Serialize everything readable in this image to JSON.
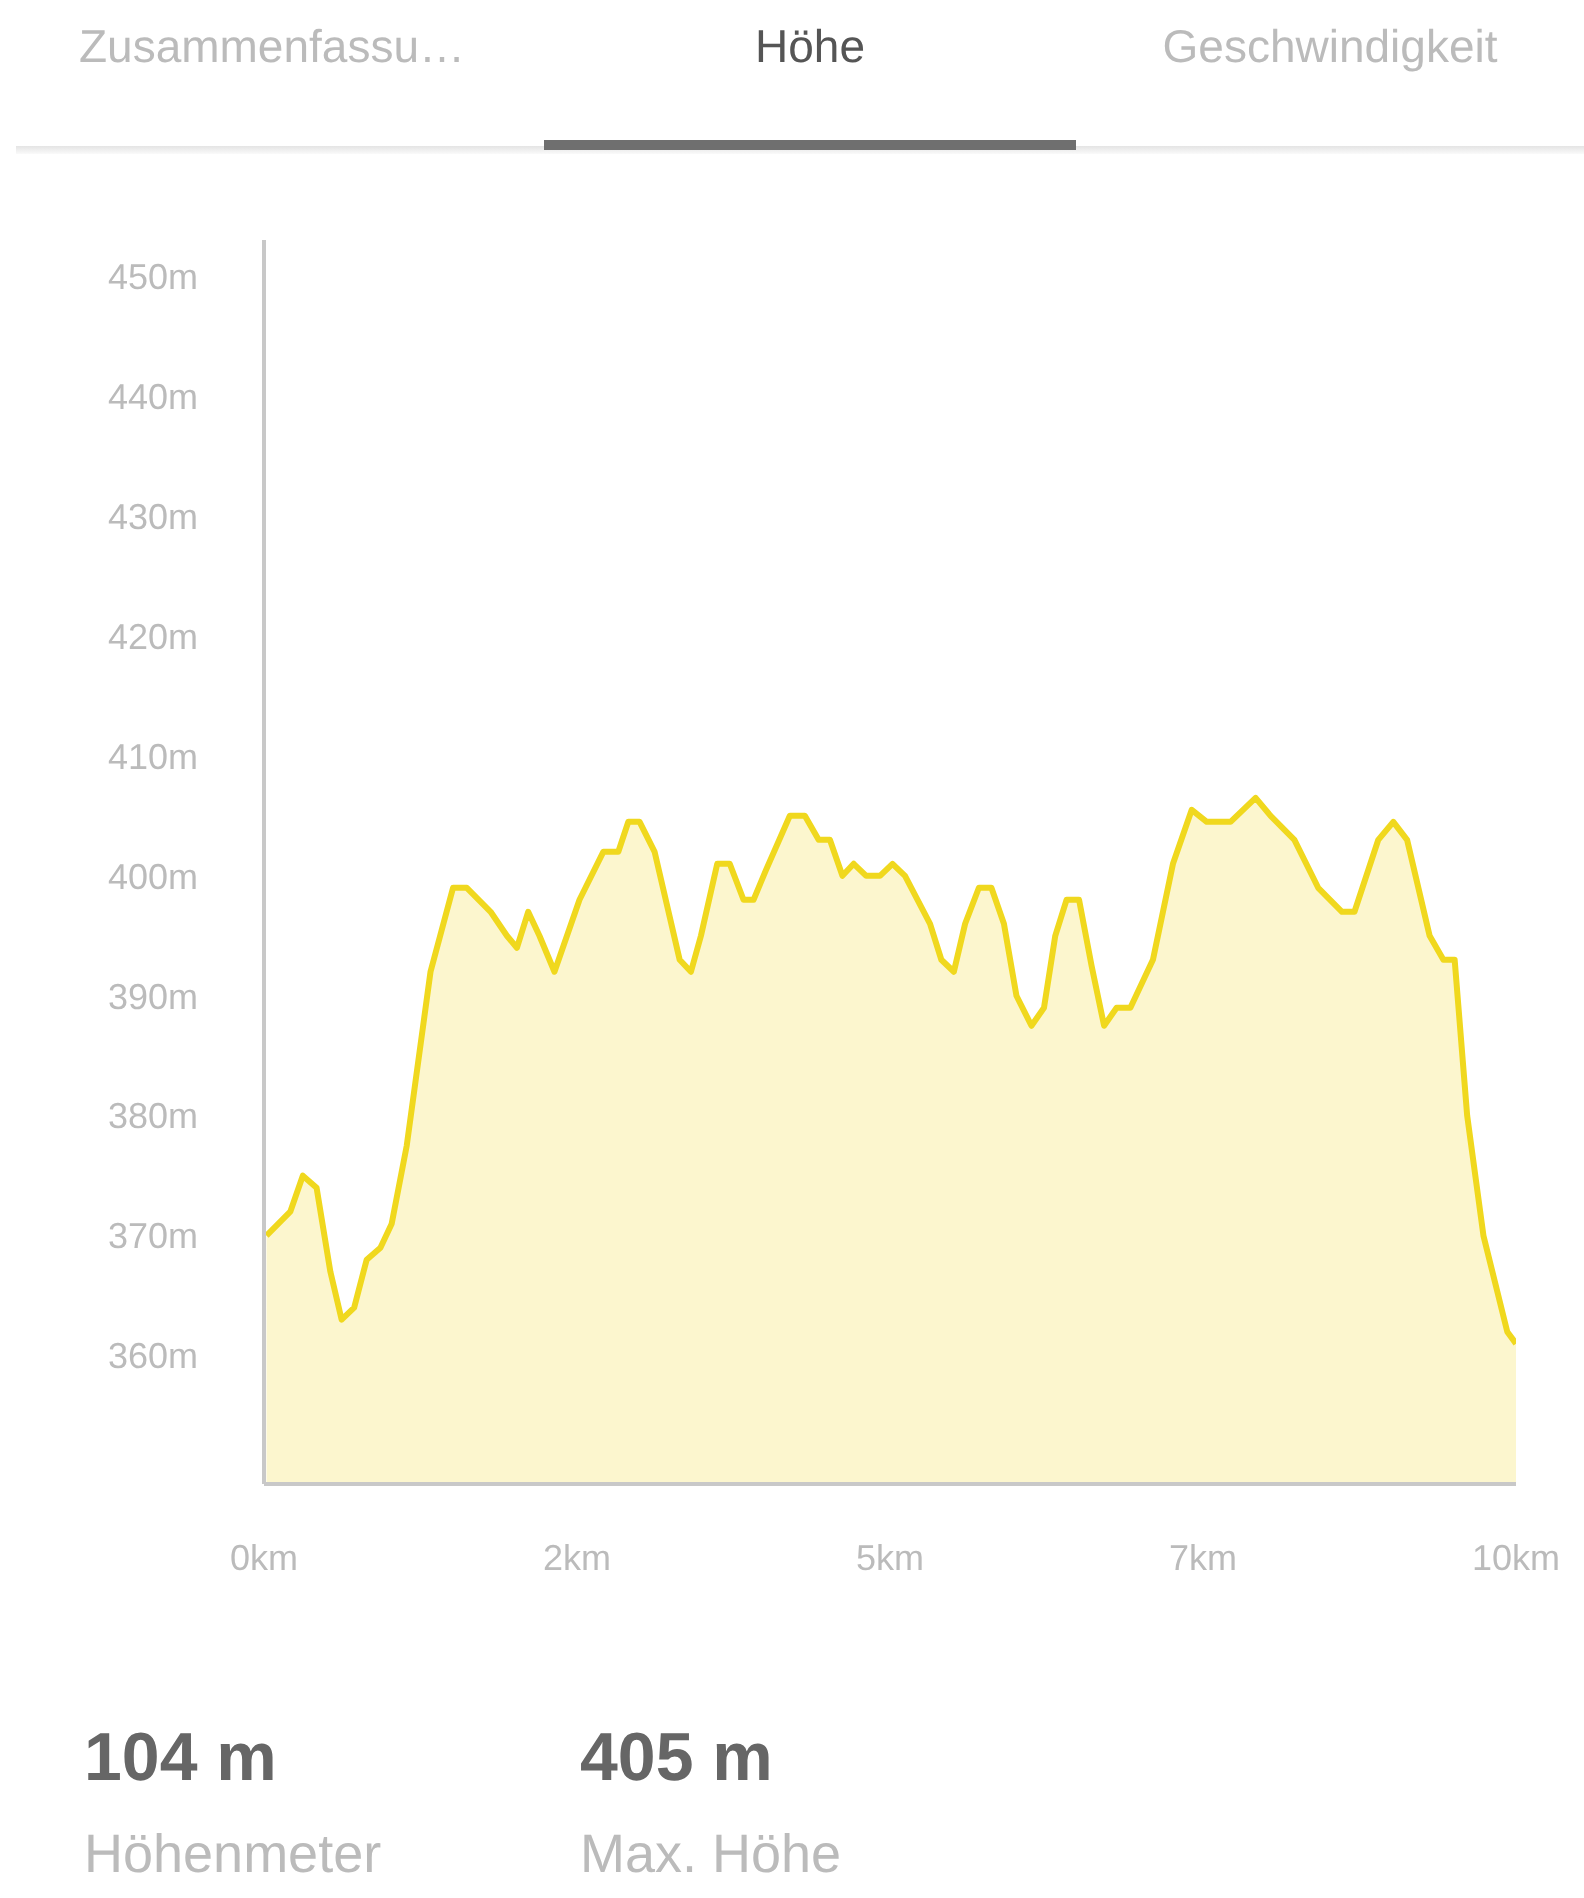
{
  "chart_data": {
    "type": "area",
    "annotations": [
      "Zusammenfassu…",
      "Höhe",
      "Geschwindigkeit",
      "104 m",
      "Höhenmeter",
      "405 m",
      "Max. Höhe"
    ],
    "x": [
      0.02,
      0.21,
      0.31,
      0.42,
      0.53,
      0.62,
      0.72,
      0.82,
      0.93,
      1.02,
      1.14,
      1.33,
      1.51,
      1.62,
      1.81,
      1.94,
      2.02,
      2.11,
      2.2,
      2.32,
      2.52,
      2.71,
      2.83,
      2.91,
      3.0,
      3.12,
      3.32,
      3.41,
      3.49,
      3.62,
      3.72,
      3.83,
      3.91,
      4.01,
      4.2,
      4.32,
      4.43,
      4.52,
      4.62,
      4.71,
      4.81,
      4.92,
      5.02,
      5.12,
      5.32,
      5.41,
      5.51,
      5.6,
      5.71,
      5.81,
      5.91,
      6.01,
      6.13,
      6.23,
      6.32,
      6.41,
      6.51,
      6.61,
      6.71,
      6.81,
      6.92,
      7.1,
      7.26,
      7.41,
      7.53,
      7.72,
      7.92,
      8.04,
      8.23,
      8.42,
      8.61,
      8.71,
      8.9,
      9.02,
      9.13,
      9.31,
      9.42,
      9.51,
      9.61,
      9.74,
      9.93,
      10.0
    ],
    "series": [
      {
        "color": "#f0d81e",
        "values": [
          370,
          372,
          375,
          374,
          367,
          363,
          364,
          368,
          369,
          371,
          377.5,
          392,
          399,
          399,
          397,
          395,
          394,
          397,
          395,
          392,
          398,
          402,
          402,
          404.5,
          404.5,
          402,
          393,
          392,
          395,
          401,
          401,
          398,
          398,
          400.5,
          405,
          405,
          403,
          403,
          400,
          401,
          400,
          400,
          401,
          400,
          396,
          393,
          392,
          396,
          399,
          399,
          396,
          390,
          387.5,
          389,
          395,
          398,
          398,
          392.5,
          387.5,
          389,
          389,
          393,
          401,
          405.5,
          404.5,
          404.5,
          406.5,
          405,
          403,
          399,
          397,
          397,
          403,
          404.5,
          403,
          395,
          393,
          393,
          380,
          370,
          362,
          361
        ]
      }
    ],
    "xlim": [
      0,
      10
    ],
    "xticks": [
      {
        "value": 0,
        "label": "0km"
      },
      {
        "value": 2.5,
        "label": "2km"
      },
      {
        "value": 5,
        "label": "5km"
      },
      {
        "value": 7.5,
        "label": "7km"
      },
      {
        "value": 10,
        "label": "10km"
      }
    ],
    "ylim": [
      349.3,
      453
    ],
    "yticks": [
      {
        "value": 360,
        "label": "360m"
      },
      {
        "value": 370,
        "label": "370m"
      },
      {
        "value": 380,
        "label": "380m"
      },
      {
        "value": 390,
        "label": "390m"
      },
      {
        "value": 400,
        "label": "400m"
      },
      {
        "value": 410,
        "label": "410m"
      },
      {
        "value": 420,
        "label": "420m"
      },
      {
        "value": 430,
        "label": "430m"
      },
      {
        "value": 440,
        "label": "440m"
      },
      {
        "value": 450,
        "label": "450m"
      }
    ],
    "marker": "none",
    "line_style": "solid"
  }
}
